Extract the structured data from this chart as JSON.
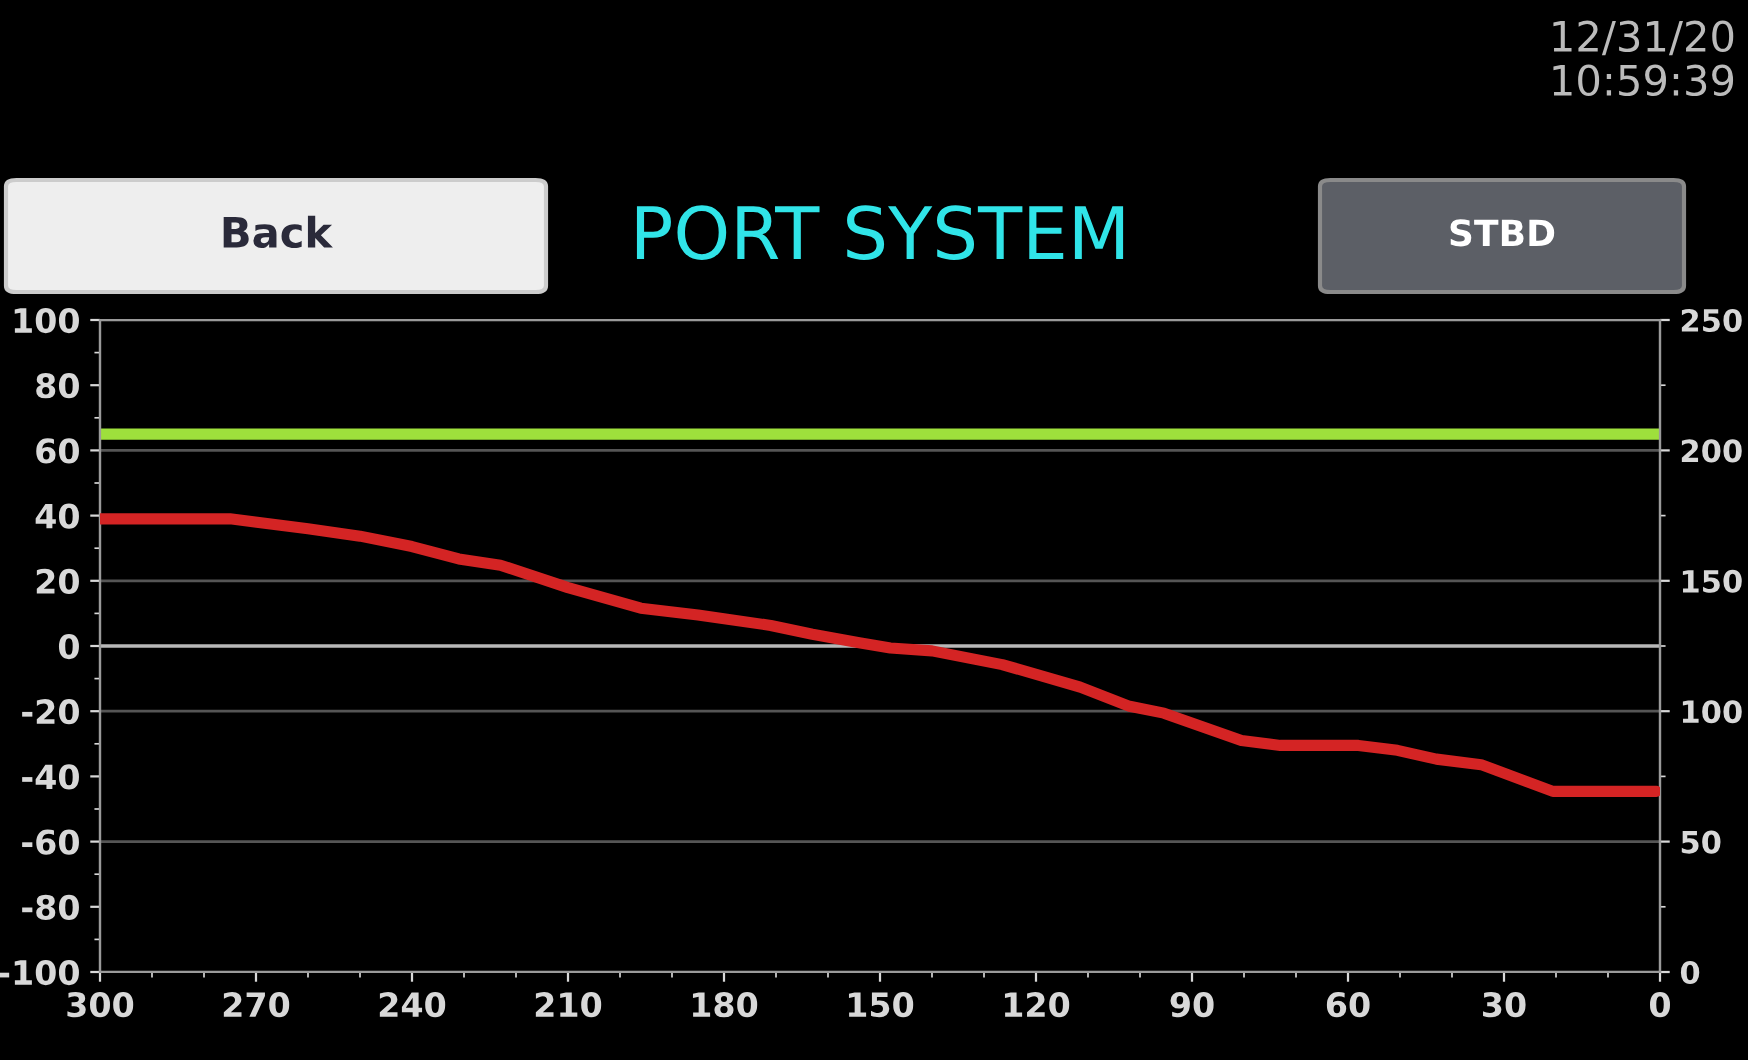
{
  "chart_data": {
    "type": "line",
    "title": "PORT SYSTEM",
    "annotations": [
      "Back",
      "STBD",
      "12/31/20",
      "10:59:39"
    ],
    "series": [
      {
        "color": "#d42424",
        "x": [
          300,
          275,
          260,
          250,
          240,
          231,
          223,
          210,
          196,
          185,
          171,
          163,
          154,
          148,
          140,
          126.5,
          111.5,
          102,
          95.4,
          80.5,
          73,
          58,
          50.5,
          43,
          34.4,
          20.6,
          0.7
        ],
        "values": [
          39,
          39,
          36,
          33.7,
          30.5,
          26.7,
          24.8,
          17.9,
          11.6,
          9.5,
          6.3,
          3.6,
          1,
          -0.6,
          -1.5,
          -5.7,
          -12.6,
          -18.5,
          -20.6,
          -29,
          -30.5,
          -30.5,
          -32,
          -34.7,
          -36.4,
          -44.6,
          -44.6
        ]
      }
    ],
    "xlim": [
      300,
      0
    ],
    "xticks": [
      300,
      270,
      240,
      210,
      180,
      150,
      120,
      90,
      60,
      30,
      0
    ],
    "ylim": [
      -100,
      100
    ],
    "yticks": [
      -100,
      -80,
      -60,
      -40,
      -20,
      0,
      20,
      40,
      60,
      80,
      100
    ],
    "y2lim": [
      0,
      250
    ],
    "y2ticks": [
      0,
      50,
      100,
      150,
      200,
      250
    ],
    "ref_lines": [
      {
        "axis": "y",
        "value": 65,
        "color": "#9ee03c"
      },
      {
        "axis": "y",
        "value": 0,
        "color": "#b8b8b8"
      }
    ],
    "grid": "y",
    "marker": "none",
    "line_style": "solid"
  }
}
